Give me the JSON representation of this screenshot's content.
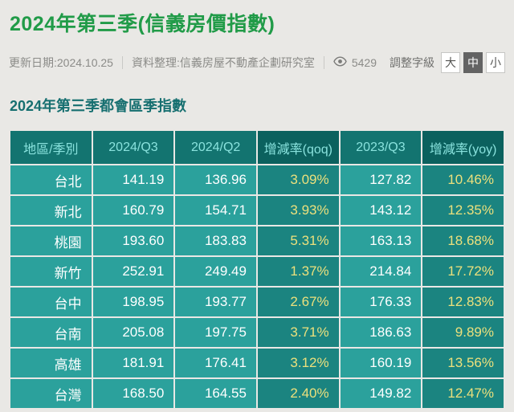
{
  "header": {
    "title": "2024年第三季(信義房價指數)",
    "updated": "更新日期:2024.10.25",
    "source": "資料整理:信義房屋不動產企劃研究室",
    "view_count": "5429",
    "font_size_label": "調整字級",
    "font_size_buttons": [
      {
        "label": "大",
        "active": false
      },
      {
        "label": "中",
        "active": true
      },
      {
        "label": "小",
        "active": false
      }
    ]
  },
  "section": {
    "title": "2024年第三季都會區季指數"
  },
  "table": {
    "columns": [
      "地區/季別",
      "2024/Q3",
      "2024/Q2",
      "增減率(qoq)",
      "2023/Q3",
      "增減率(yoy)"
    ],
    "pct_columns": [
      3,
      5
    ],
    "rows": [
      [
        "台北",
        "141.19",
        "136.96",
        "3.09%",
        "127.82",
        "10.46%"
      ],
      [
        "新北",
        "160.79",
        "154.71",
        "3.93%",
        "143.12",
        "12.35%"
      ],
      [
        "桃園",
        "193.60",
        "183.83",
        "5.31%",
        "163.13",
        "18.68%"
      ],
      [
        "新竹",
        "252.91",
        "249.49",
        "1.37%",
        "214.84",
        "17.72%"
      ],
      [
        "台中",
        "198.95",
        "193.77",
        "2.67%",
        "176.33",
        "12.83%"
      ],
      [
        "台南",
        "205.08",
        "197.75",
        "3.71%",
        "186.63",
        "9.89%"
      ],
      [
        "高雄",
        "181.91",
        "176.41",
        "3.12%",
        "160.19",
        "13.56%"
      ],
      [
        "台灣",
        "168.50",
        "164.55",
        "2.40%",
        "149.82",
        "12.47%"
      ]
    ]
  },
  "colors": {
    "title_green": "#219b48",
    "section_teal": "#166f70",
    "header_bg": "#137470",
    "header_bg_dark": "#0b615e",
    "header_text": "#89e2dd",
    "cell_bg": "#2ba19c",
    "cell_bg_dark": "#1b8480",
    "pct_text_yellow": "#ece07c",
    "page_bg": "#e9e8e5"
  }
}
